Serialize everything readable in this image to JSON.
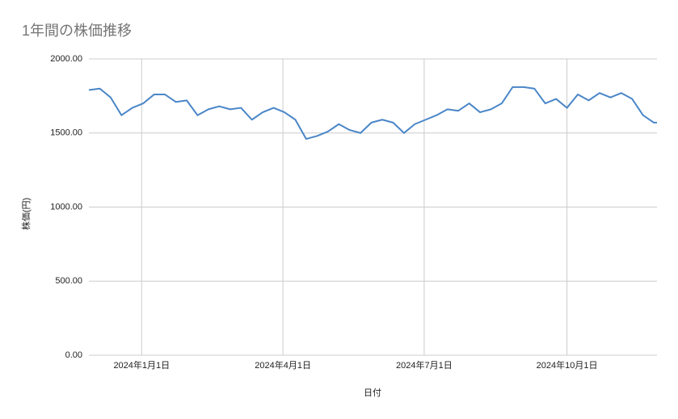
{
  "chart_data": {
    "type": "line",
    "title": "1年間の株価推移",
    "x_label": "日付",
    "y_label": "株価(円)",
    "x": [
      "2023-11-28",
      "2023-12-05",
      "2023-12-12",
      "2023-12-19",
      "2023-12-26",
      "2024-01-02",
      "2024-01-09",
      "2024-01-16",
      "2024-01-23",
      "2024-01-30",
      "2024-02-06",
      "2024-02-13",
      "2024-02-20",
      "2024-02-27",
      "2024-03-05",
      "2024-03-12",
      "2024-03-19",
      "2024-03-26",
      "2024-04-02",
      "2024-04-09",
      "2024-04-16",
      "2024-04-23",
      "2024-04-30",
      "2024-05-07",
      "2024-05-14",
      "2024-05-21",
      "2024-05-28",
      "2024-06-04",
      "2024-06-11",
      "2024-06-18",
      "2024-06-25",
      "2024-07-02",
      "2024-07-09",
      "2024-07-16",
      "2024-07-23",
      "2024-07-30",
      "2024-08-06",
      "2024-08-13",
      "2024-08-20",
      "2024-08-27",
      "2024-09-03",
      "2024-09-10",
      "2024-09-17",
      "2024-09-24",
      "2024-10-01",
      "2024-10-08",
      "2024-10-15",
      "2024-10-22",
      "2024-10-29",
      "2024-11-05",
      "2024-11-12",
      "2024-11-19",
      "2024-11-26",
      "2024-11-28"
    ],
    "series": [
      {
        "name": "株価",
        "color": "#4a86c8",
        "values": [
          1790,
          1800,
          1740,
          1620,
          1670,
          1700,
          1760,
          1760,
          1710,
          1720,
          1620,
          1660,
          1680,
          1660,
          1670,
          1590,
          1640,
          1670,
          1640,
          1590,
          1460,
          1480,
          1510,
          1560,
          1520,
          1500,
          1570,
          1590,
          1570,
          1500,
          1560,
          1590,
          1620,
          1660,
          1650,
          1700,
          1640,
          1660,
          1700,
          1810,
          1810,
          1800,
          1700,
          1730,
          1670,
          1760,
          1720,
          1770,
          1740,
          1770,
          1730,
          1620,
          1570,
          1570
        ]
      }
    ],
    "xlim": [
      "2023-11-28",
      "2024-11-28"
    ],
    "xticks": [
      {
        "value": "2024-01-01",
        "label": "2024年1月1日"
      },
      {
        "value": "2024-04-01",
        "label": "2024年4月1日"
      },
      {
        "value": "2024-07-01",
        "label": "2024年7月1日"
      },
      {
        "value": "2024-10-01",
        "label": "2024年10月1日"
      }
    ],
    "ylim": [
      0,
      2000
    ],
    "yticks": [
      {
        "value": 0,
        "label": "0.00"
      },
      {
        "value": 500,
        "label": "500.00"
      },
      {
        "value": 1000,
        "label": "1000.00"
      },
      {
        "value": 1500,
        "label": "1500.00"
      },
      {
        "value": 2000,
        "label": "2000.00"
      }
    ],
    "grid": true
  }
}
